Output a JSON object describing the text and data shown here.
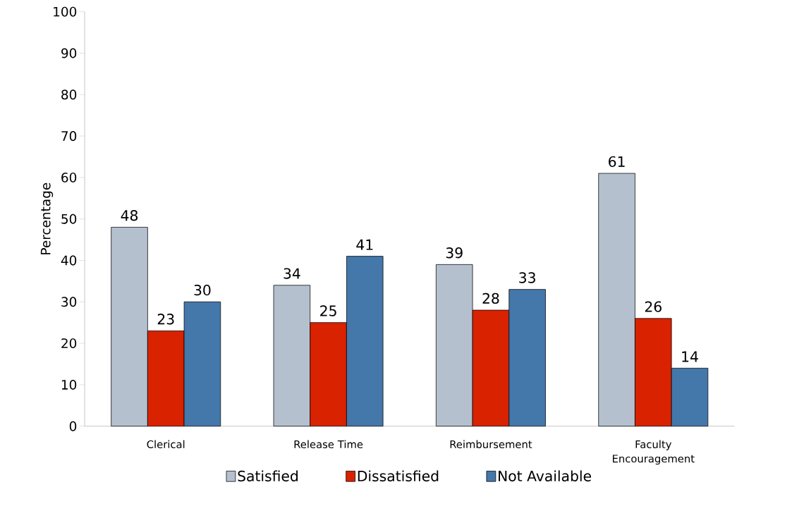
{
  "chart_data": {
    "type": "bar",
    "ylabel": "Percentage",
    "categories": [
      "Clerical",
      "Release Time",
      "Reimbursement",
      "Faculty Encouragement"
    ],
    "series": [
      {
        "name": "Satisfied",
        "color": "#b4c0ce",
        "values": [
          48,
          34,
          39,
          61
        ]
      },
      {
        "name": "Dissatisfied",
        "color": "#d92200",
        "values": [
          23,
          25,
          28,
          26
        ]
      },
      {
        "name": "Not Available",
        "color": "#4477aa",
        "values": [
          30,
          41,
          33,
          14
        ]
      }
    ],
    "ylim": [
      0,
      100
    ],
    "yticks": [
      0,
      10,
      20,
      30,
      40,
      50,
      60,
      70,
      80,
      90,
      100
    ],
    "data_labels": true,
    "legend": "bottom",
    "grid": false
  }
}
